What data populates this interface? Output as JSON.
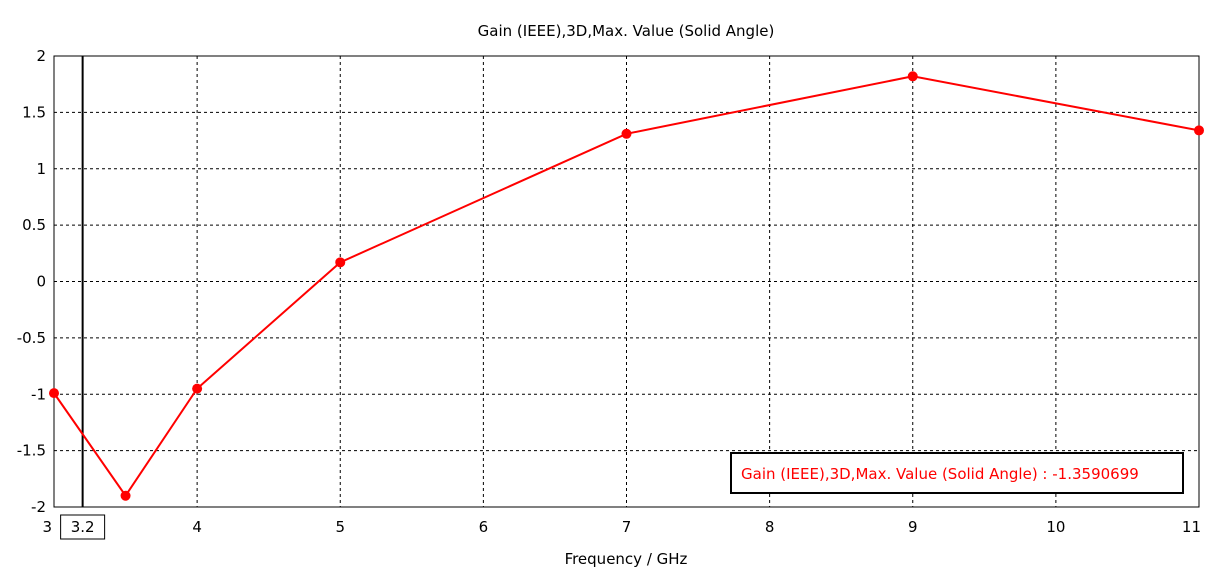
{
  "chart_data": {
    "type": "line",
    "title": "Gain (IEEE),3D,Max. Value (Solid Angle)",
    "xlabel": "Frequency / GHz",
    "ylabel": "",
    "xlim": [
      3,
      11
    ],
    "ylim": [
      -2,
      2
    ],
    "x_ticks": [
      "3",
      "4",
      "5",
      "6",
      "7",
      "8",
      "9",
      "10",
      "11"
    ],
    "x_tick_values": [
      3,
      4,
      5,
      6,
      7,
      8,
      9,
      10,
      11
    ],
    "y_ticks": [
      "2",
      "1.5",
      "1",
      "0.5",
      "0",
      "-0.5",
      "-1",
      "-1.5",
      "-2"
    ],
    "y_tick_values": [
      2,
      1.5,
      1,
      0.5,
      0,
      -0.5,
      -1,
      -1.5,
      -2
    ],
    "grid": true,
    "series": [
      {
        "name": "Gain (IEEE),3D,Max. Value (Solid Angle)",
        "color": "#ff0000",
        "x": [
          3,
          3.5,
          4,
          5,
          7,
          9,
          11
        ],
        "y": [
          -0.99,
          -1.9,
          -0.95,
          0.17,
          1.31,
          1.82,
          1.34
        ]
      }
    ],
    "cursor": {
      "x": 3.2,
      "label": "3.2",
      "color": "#000000"
    },
    "legend": {
      "position": "bottom-right",
      "text": "Gain (IEEE),3D,Max. Value (Solid Angle) : -1.3590699"
    }
  }
}
